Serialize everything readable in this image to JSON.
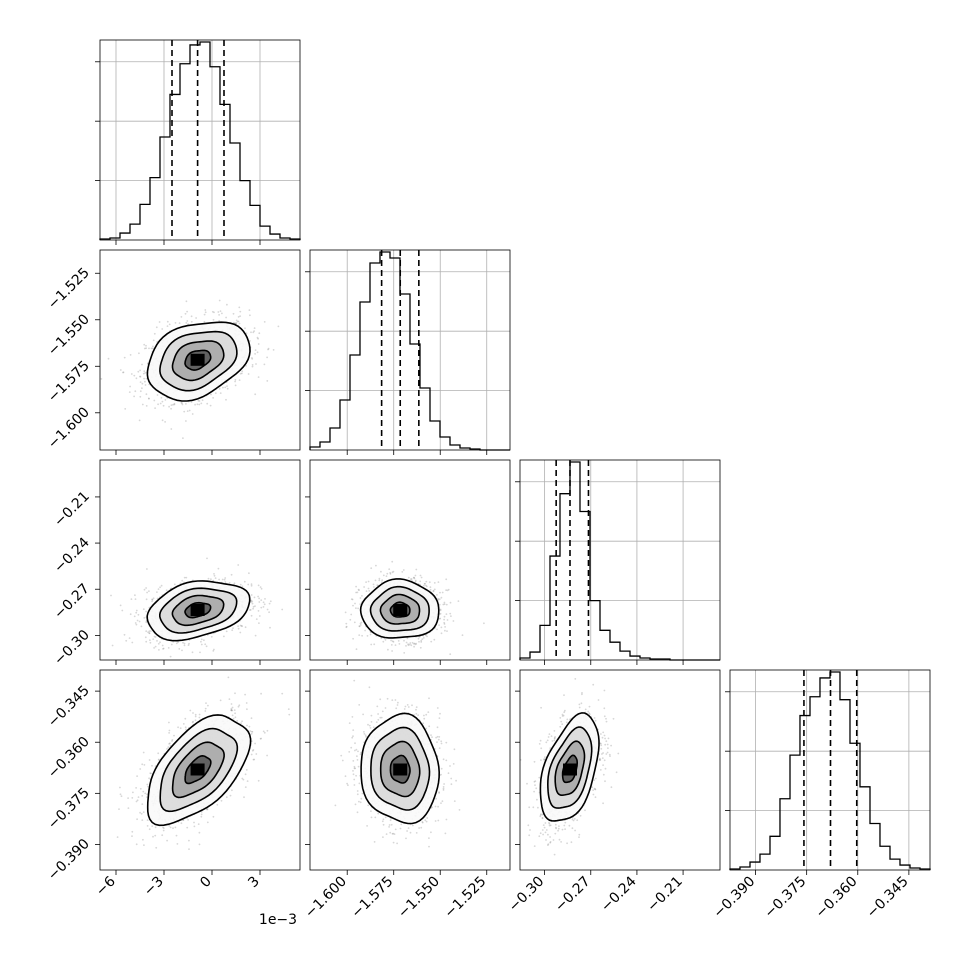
{
  "chart_data": {
    "type": "scatter",
    "kind": "corner plot (posterior samples)",
    "title": "",
    "grid": true,
    "parameters": [
      {
        "ticks": [
          -6,
          -3,
          0,
          3
        ],
        "tick_labels": [
          "−6",
          "−3",
          "0",
          "3"
        ],
        "range": [
          -7.0,
          5.5
        ],
        "scale_label": "1e−3",
        "median": -0.9,
        "q16": -2.5,
        "q84": 0.75,
        "sigma": 1.6
      },
      {
        "ticks": [
          -1.6,
          -1.575,
          -1.55,
          -1.525
        ],
        "tick_labels": [
          "−1.600",
          "−1.575",
          "−1.550",
          "−1.525"
        ],
        "range": [
          -1.62,
          -1.5125
        ],
        "median": -1.5715,
        "q16": -1.5815,
        "q84": -1.5615,
        "sigma": 0.0105
      },
      {
        "ticks": [
          -0.3,
          -0.27,
          -0.24,
          -0.21
        ],
        "tick_labels": [
          "−0.30",
          "−0.27",
          "−0.24",
          "−0.21"
        ],
        "range": [
          -0.316,
          -0.186
        ],
        "median": -0.2835,
        "q16": -0.2925,
        "q84": -0.2715,
        "sigma": 0.0095
      },
      {
        "ticks": [
          -0.39,
          -0.375,
          -0.36,
          -0.345
        ],
        "tick_labels": [
          "−0.390",
          "−0.375",
          "−0.360",
          "−0.345"
        ],
        "range": [
          -0.3975,
          -0.3388
        ],
        "median": -0.368,
        "q16": -0.3758,
        "q84": -0.3603,
        "sigma": 0.0079
      }
    ],
    "histograms": [
      {
        "parameter": 0,
        "bin_edges": [
          -7.0,
          -6.375,
          -5.75,
          -5.125,
          -4.5,
          -3.875,
          -3.25,
          -2.625,
          -2.0,
          -1.375,
          -0.75,
          -0.125,
          0.5,
          1.125,
          1.75,
          2.375,
          3.0,
          3.625,
          4.25,
          4.875,
          5.5
        ],
        "counts": [
          1,
          2,
          7,
          16,
          36,
          63,
          104,
          147,
          178,
          197,
          200,
          175,
          137,
          98,
          60,
          35,
          14,
          6,
          2,
          1
        ]
      },
      {
        "parameter": 1,
        "bin_edges": [
          -1.62,
          -1.61463,
          -1.60925,
          -1.60388,
          -1.5985,
          -1.59313,
          -1.58775,
          -1.58238,
          -1.577,
          -1.57163,
          -1.56625,
          -1.56088,
          -1.5555,
          -1.55013,
          -1.54475,
          -1.53938,
          -1.534,
          -1.52863,
          -1.52325,
          -1.51788,
          -1.5125
        ],
        "counts": [
          3,
          8,
          22,
          50,
          95,
          148,
          187,
          198,
          192,
          156,
          106,
          62,
          29,
          13,
          5,
          2,
          1,
          0,
          0,
          0
        ]
      },
      {
        "parameter": 2,
        "bin_edges": [
          -0.316,
          -0.3095,
          -0.303,
          -0.2965,
          -0.29,
          -0.2835,
          -0.277,
          -0.2705,
          -0.264,
          -0.2575,
          -0.251,
          -0.2445,
          -0.238,
          -0.2315,
          -0.225,
          -0.2185,
          -0.212,
          -0.2055,
          -0.199,
          -0.1925,
          -0.186
        ],
        "counts": [
          2,
          8,
          35,
          105,
          168,
          200,
          150,
          60,
          30,
          18,
          9,
          4,
          2,
          1,
          1,
          0,
          0,
          0,
          0,
          0
        ]
      },
      {
        "parameter": 3,
        "bin_edges": [
          -0.3975,
          -0.39457,
          -0.39163,
          -0.3887,
          -0.38576,
          -0.38283,
          -0.37989,
          -0.37696,
          -0.37402,
          -0.37109,
          -0.36815,
          -0.36522,
          -0.36228,
          -0.35935,
          -0.35641,
          -0.35348,
          -0.35054,
          -0.34761,
          -0.34467,
          -0.34174,
          -0.3388
        ],
        "counts": [
          1,
          3,
          8,
          16,
          34,
          72,
          116,
          156,
          175,
          194,
          200,
          172,
          128,
          84,
          47,
          24,
          11,
          5,
          2,
          1
        ]
      }
    ],
    "pairs": [
      {
        "x_param": 0,
        "y_param": 1,
        "correlation": 0.3
      },
      {
        "x_param": 0,
        "y_param": 2,
        "correlation": 0.3
      },
      {
        "x_param": 1,
        "y_param": 2,
        "correlation": 0.0
      },
      {
        "x_param": 0,
        "y_param": 3,
        "correlation": 0.55
      },
      {
        "x_param": 1,
        "y_param": 3,
        "correlation": -0.05
      },
      {
        "x_param": 2,
        "y_param": 3,
        "correlation": 0.45
      }
    ],
    "contour_levels_sigma": [
      0.5,
      1.0,
      1.5,
      2.0
    ]
  }
}
